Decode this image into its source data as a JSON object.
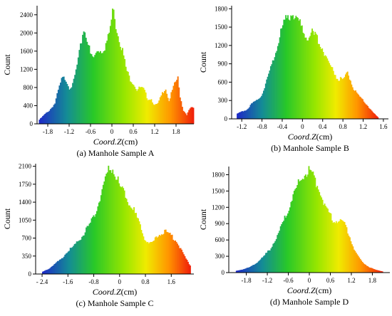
{
  "chart_data": [
    {
      "type": "bar",
      "caption": "(a) Manhole Sample A",
      "xlabel_italic": "Coord.Z",
      "xlabel_unit": "(cm)",
      "ylabel": "Count",
      "xlim": [
        -2.1,
        2.3
      ],
      "ylim": [
        0,
        2600
      ],
      "xticks": [
        -1.8,
        -1.2,
        -0.6,
        0,
        0.6,
        1.2,
        1.8
      ],
      "xtick_labels": [
        "-1.8",
        "-1.2",
        "-0.6",
        "0",
        "0.6",
        "1.2",
        "1.8"
      ],
      "yticks": [
        0,
        400,
        800,
        1200,
        1600,
        2000,
        2400
      ],
      "ytick_labels": [
        "0",
        "400",
        "800",
        "1200",
        "1600",
        "2000",
        "2400"
      ],
      "x": [
        -2.05,
        -1.9,
        -1.75,
        -1.6,
        -1.5,
        -1.4,
        -1.3,
        -1.2,
        -1.1,
        -1.0,
        -0.9,
        -0.8,
        -0.7,
        -0.6,
        -0.5,
        -0.4,
        -0.3,
        -0.2,
        -0.1,
        0.0,
        0.05,
        0.1,
        0.2,
        0.3,
        0.4,
        0.5,
        0.6,
        0.7,
        0.8,
        0.9,
        1.0,
        1.1,
        1.2,
        1.3,
        1.4,
        1.5,
        1.6,
        1.7,
        1.8,
        1.85,
        1.9,
        2.0,
        2.1,
        2.2,
        2.3
      ],
      "values": [
        80,
        200,
        300,
        450,
        750,
        1000,
        1000,
        800,
        850,
        1200,
        1600,
        2100,
        1900,
        1500,
        1450,
        1650,
        1600,
        1700,
        1900,
        2350,
        2650,
        2200,
        1900,
        1600,
        1200,
        1000,
        900,
        750,
        800,
        750,
        550,
        550,
        400,
        450,
        650,
        800,
        500,
        750,
        950,
        1000,
        650,
        300,
        200,
        350,
        350
      ]
    },
    {
      "type": "bar",
      "caption": "(b) Manhole Sample B",
      "xlabel_italic": "Coord.Z",
      "xlabel_unit": "(cm)",
      "ylabel": "Count",
      "xlim": [
        -1.4,
        1.7
      ],
      "ylim": [
        0,
        1850
      ],
      "xticks": [
        -1.2,
        -0.8,
        -0.4,
        0,
        0.4,
        0.8,
        1.2,
        1.6
      ],
      "xtick_labels": [
        "-1.2",
        "-0.8",
        "-0.4",
        "0",
        "0.4",
        "0.8",
        "1.2",
        "1.6"
      ],
      "yticks": [
        0,
        300,
        600,
        900,
        1200,
        1500,
        1800
      ],
      "ytick_labels": [
        "0",
        "300",
        "600",
        "900",
        "1200",
        "1500",
        "1800"
      ],
      "x": [
        -1.3,
        -1.2,
        -1.1,
        -1.0,
        -0.9,
        -0.8,
        -0.7,
        -0.6,
        -0.5,
        -0.4,
        -0.3,
        -0.2,
        -0.1,
        0.0,
        0.1,
        0.2,
        0.3,
        0.4,
        0.5,
        0.6,
        0.7,
        0.8,
        0.9,
        1.0,
        1.1,
        1.2,
        1.3,
        1.4,
        1.5
      ],
      "values": [
        80,
        120,
        150,
        250,
        300,
        400,
        650,
        900,
        1200,
        1500,
        1650,
        1750,
        1650,
        1450,
        1350,
        1400,
        1300,
        1150,
        950,
        800,
        650,
        650,
        750,
        500,
        380,
        300,
        200,
        100,
        20
      ]
    },
    {
      "type": "bar",
      "caption": "(c) Manhole Sample C",
      "xlabel_italic": "Coord.Z",
      "xlabel_unit": "(cm)",
      "ylabel": "Count",
      "xlim": [
        -2.6,
        2.3
      ],
      "ylim": [
        0,
        2150
      ],
      "xticks": [
        -2.4,
        -1.6,
        -0.8,
        0,
        0.8,
        1.6
      ],
      "xtick_labels": [
        "- 2.4",
        "-1.6",
        "-0.8",
        "0",
        "0.8",
        "1.6"
      ],
      "yticks": [
        0,
        350,
        700,
        1050,
        1400,
        1750,
        2100
      ],
      "ytick_labels": [
        "0",
        "350",
        "700",
        "1050",
        "1400",
        "1750",
        "2100"
      ],
      "x": [
        -2.4,
        -2.2,
        -2.0,
        -1.8,
        -1.6,
        -1.4,
        -1.2,
        -1.0,
        -0.8,
        -0.6,
        -0.4,
        -0.3,
        -0.2,
        -0.1,
        0.0,
        0.2,
        0.4,
        0.6,
        0.8,
        1.0,
        1.2,
        1.4,
        1.6,
        1.8,
        2.0,
        2.2
      ],
      "values": [
        40,
        100,
        200,
        300,
        450,
        550,
        700,
        900,
        1100,
        1500,
        1900,
        2100,
        2050,
        1900,
        1700,
        1500,
        1300,
        1000,
        650,
        600,
        750,
        850,
        750,
        600,
        350,
        150
      ]
    },
    {
      "type": "bar",
      "caption": "(d) Manhole Sample D",
      "xlabel_italic": "Coord.Z",
      "xlabel_unit": "(cm)",
      "ylabel": "Count",
      "xlim": [
        -2.3,
        2.3
      ],
      "ylim": [
        0,
        1950
      ],
      "xticks": [
        -1.8,
        -1.2,
        -0.6,
        0,
        0.6,
        1.2,
        1.8
      ],
      "xtick_labels": [
        "-1.8",
        "-1.2",
        "-0.6",
        "0",
        "0.6",
        "1.2",
        "1.8"
      ],
      "yticks": [
        0,
        300,
        600,
        900,
        1200,
        1500,
        1800
      ],
      "ytick_labels": [
        "0",
        "300",
        "600",
        "900",
        "1200",
        "1500",
        "1800"
      ],
      "x": [
        -2.1,
        -1.9,
        -1.7,
        -1.5,
        -1.3,
        -1.1,
        -0.9,
        -0.7,
        -0.5,
        -0.3,
        -0.1,
        0.0,
        0.1,
        0.3,
        0.5,
        0.7,
        0.9,
        1.0,
        1.1,
        1.3,
        1.5,
        1.7,
        1.9,
        2.1
      ],
      "values": [
        30,
        60,
        100,
        180,
        300,
        450,
        700,
        1000,
        1350,
        1650,
        1850,
        1900,
        1800,
        1500,
        1150,
        950,
        950,
        900,
        750,
        400,
        200,
        100,
        50,
        20
      ]
    }
  ]
}
